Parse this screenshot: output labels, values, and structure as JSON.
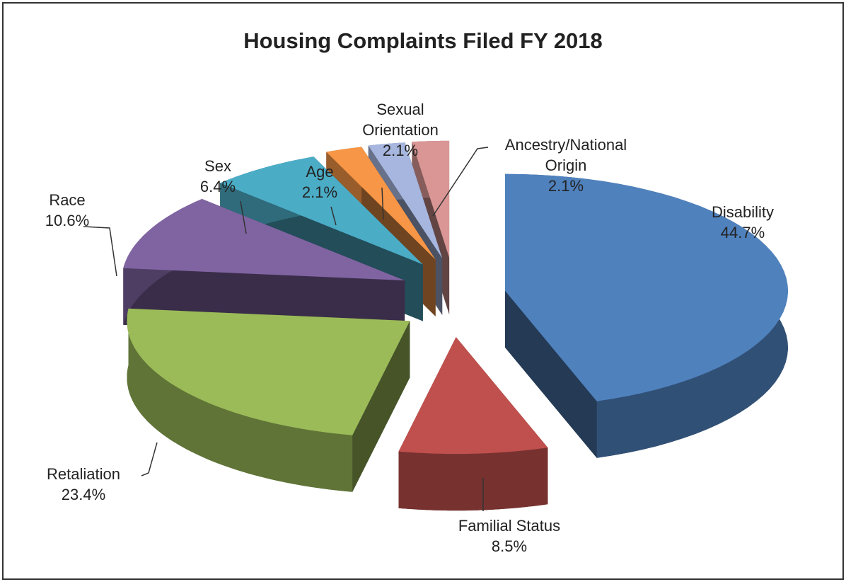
{
  "chart_data": {
    "type": "pie3d",
    "title": "Housing Complaints Filed FY 2018",
    "categories": [
      "Disability",
      "Familial Status",
      "Retaliation",
      "Race",
      "Sex",
      "Age",
      "Sexual Orientation",
      "Ancestry/National Origin"
    ],
    "values": [
      44.7,
      8.5,
      23.4,
      10.6,
      6.4,
      2.1,
      2.1,
      2.1
    ],
    "value_labels": [
      "44.7%",
      "8.5%",
      "23.4%",
      "10.6%",
      "6.4%",
      "2.1%",
      "2.1%",
      "2.1%"
    ],
    "colors": [
      "#4f81bd",
      "#c0504d",
      "#9bbb59",
      "#8064a2",
      "#4bacc6",
      "#f79646",
      "#a6b6de",
      "#d99694"
    ]
  }
}
